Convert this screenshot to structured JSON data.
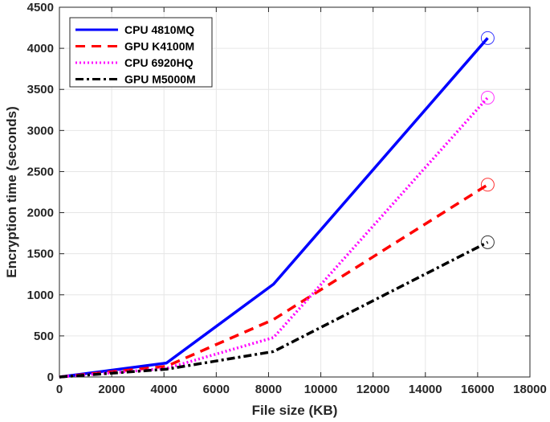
{
  "chart_data": {
    "type": "line",
    "title": "",
    "xlabel": "File size (KB)",
    "ylabel": "Encryption time (seconds)",
    "xlim": [
      0,
      18000
    ],
    "ylim": [
      0,
      4500
    ],
    "xticks": [
      0,
      2000,
      4000,
      6000,
      8000,
      10000,
      12000,
      14000,
      16000,
      18000
    ],
    "yticks": [
      0,
      500,
      1000,
      1500,
      2000,
      2500,
      3000,
      3500,
      4000,
      4500
    ],
    "grid": true,
    "legend_position": "upper-left",
    "x": [
      0,
      4096,
      8192,
      16384
    ],
    "series": [
      {
        "name": "CPU 4810MQ",
        "color": "#0000ff",
        "style": "solid",
        "values": [
          0,
          170,
          1130,
          4125
        ],
        "end_marker": "circle"
      },
      {
        "name": "GPU K4100M",
        "color": "#ff0000",
        "style": "dashed",
        "values": [
          0,
          130,
          700,
          2340
        ],
        "end_marker": "circle"
      },
      {
        "name": "CPU 6920HQ",
        "color": "#ff00ff",
        "style": "dotted",
        "values": [
          0,
          105,
          480,
          3400
        ],
        "end_marker": "circle"
      },
      {
        "name": "GPU M5000M",
        "color": "#000000",
        "style": "dashdot",
        "values": [
          0,
          95,
          310,
          1640
        ],
        "end_marker": "circle"
      }
    ]
  }
}
